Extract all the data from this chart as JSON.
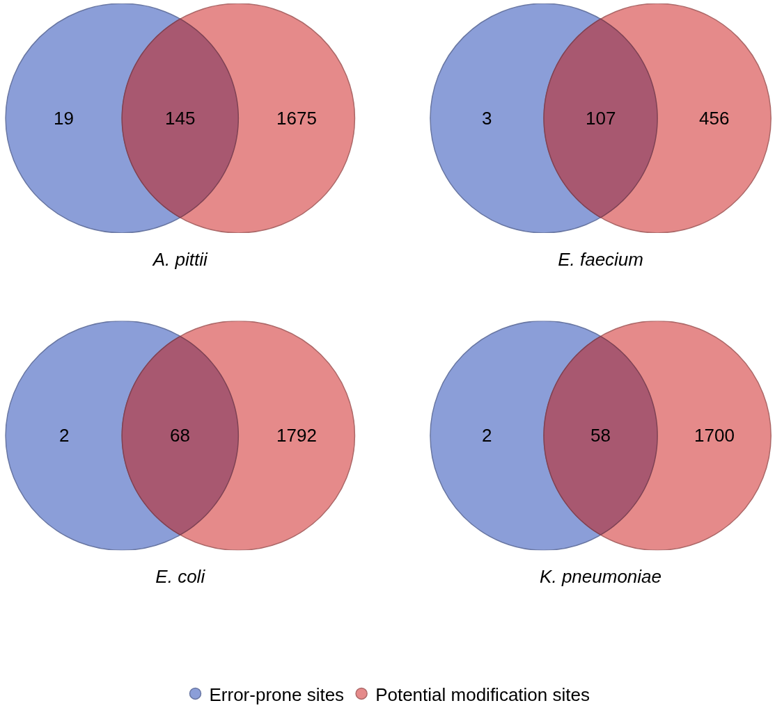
{
  "chart_data": [
    {
      "type": "other",
      "xlabel": "A. pittii",
      "categories": [
        null,
        null,
        null
      ],
      "values": [
        19,
        145,
        1675
      ],
      "data_labels": true,
      "colors": [
        "#8b9ed8",
        "#a85870",
        "#e58a8a"
      ]
    },
    {
      "type": "other",
      "xlabel": "E. faecium",
      "categories": [
        null,
        null,
        null
      ],
      "values": [
        3,
        107,
        456
      ],
      "data_labels": true,
      "colors": [
        "#8b9ed8",
        "#a85870",
        "#e58a8a"
      ]
    },
    {
      "type": "other",
      "xlabel": "E. coli",
      "categories": [
        null,
        null,
        null
      ],
      "values": [
        2,
        68,
        1792
      ],
      "data_labels": true,
      "colors": [
        "#8b9ed8",
        "#a85870",
        "#e58a8a"
      ]
    },
    {
      "type": "other",
      "xlabel": "K. pneumoniae",
      "categories": [
        null,
        null,
        null
      ],
      "values": [
        2,
        58,
        1700
      ],
      "data_labels": true,
      "colors": [
        "#8b9ed8",
        "#a85870",
        "#e58a8a"
      ]
    },
    {
      "type": "other",
      "categories": [
        "Error-prone sites",
        "Potential modification sites"
      ],
      "colors": [
        "#8b9ed8",
        "#e58a8a"
      ]
    }
  ]
}
